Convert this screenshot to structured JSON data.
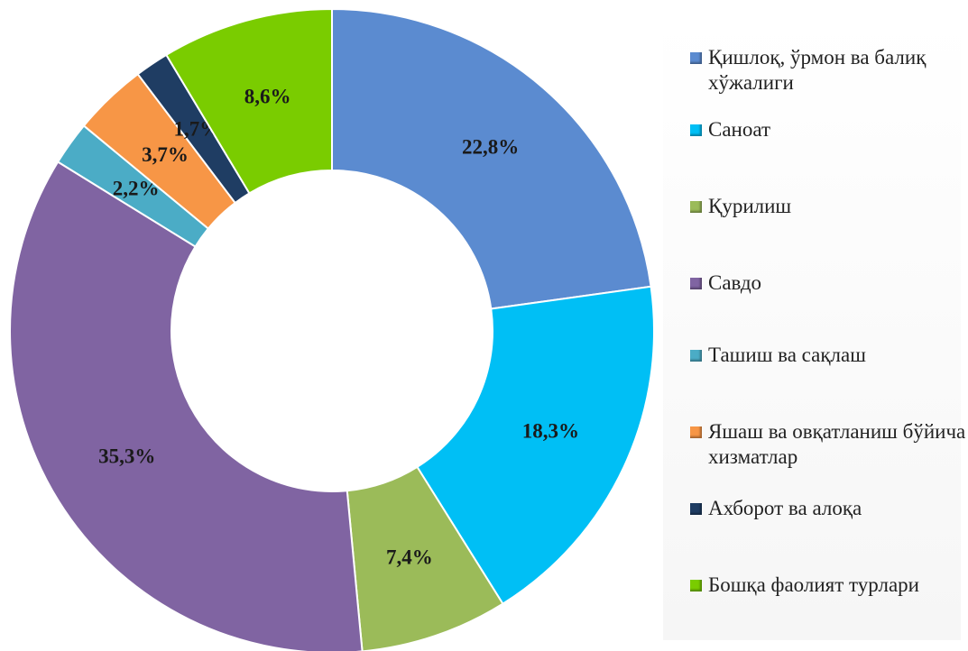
{
  "chart_data": {
    "type": "donut",
    "categories": [
      "Қишлоқ, ўрмон ва балиқ хўжалиги",
      "Саноат",
      "Қурилиш",
      "Савдо",
      "Ташиш ва сақлаш",
      "Яшаш ва овқатланиш бўйича хизматлар",
      "Ахборот ва алоқа",
      "Бошқа фаолият турлари"
    ],
    "values": [
      22.8,
      18.3,
      7.4,
      35.3,
      2.2,
      3.7,
      1.7,
      8.6
    ],
    "value_labels": [
      "22,8%",
      "18,3%",
      "7,4%",
      "35,3%",
      "2,2%",
      "3,7%",
      "1,7%",
      "8,6%"
    ],
    "colors": [
      "#5b8bd0",
      "#00bff5",
      "#9bbb59",
      "#8064a2",
      "#4bacc6",
      "#f79646",
      "#1f3d63",
      "#7acc00"
    ],
    "legend": "right"
  }
}
